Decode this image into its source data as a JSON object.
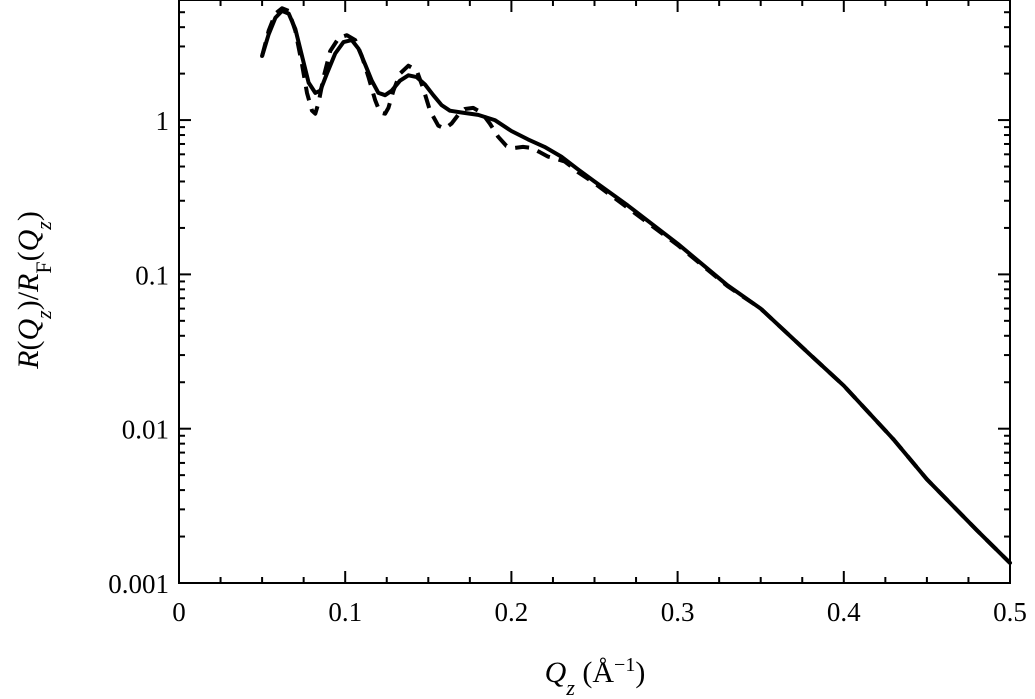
{
  "chart_data": {
    "type": "line",
    "title": "",
    "x_axis": {
      "label_parts": [
        {
          "text": "Q",
          "style": "italic"
        },
        {
          "text": "z",
          "style": "italic-sub"
        },
        {
          "text": " (Å",
          "style": "normal"
        },
        {
          "text": "−1",
          "style": "sup"
        },
        {
          "text": ")",
          "style": "normal"
        }
      ],
      "range": [
        0,
        0.5
      ],
      "ticks": [
        0,
        0.1,
        0.2,
        0.3,
        0.4,
        0.5
      ],
      "tick_labels": [
        "0",
        "0.1",
        "0.2",
        "0.3",
        "0.4",
        "0.5"
      ]
    },
    "y_axis": {
      "label_parts": [
        {
          "text": "R",
          "style": "italic"
        },
        {
          "text": "(",
          "style": "normal"
        },
        {
          "text": "Q",
          "style": "italic"
        },
        {
          "text": "z",
          "style": "italic-sub"
        },
        {
          "text": ")/",
          "style": "normal"
        },
        {
          "text": "R",
          "style": "italic"
        },
        {
          "text": "F",
          "style": "sub"
        },
        {
          "text": "(",
          "style": "normal"
        },
        {
          "text": "Q",
          "style": "italic"
        },
        {
          "text": "z",
          "style": "italic-sub"
        },
        {
          "text": ")",
          "style": "normal"
        }
      ],
      "scale": "log",
      "range": [
        0.001,
        6
      ],
      "ticks": [
        0.001,
        0.01,
        0.1,
        1
      ],
      "tick_labels": [
        "0.001",
        "0.01",
        "0.1",
        "1"
      ]
    },
    "grid": false,
    "legend": "none",
    "series": [
      {
        "style": "solid",
        "color": "#000000",
        "x": [
          0.05,
          0.054,
          0.058,
          0.062,
          0.066,
          0.07,
          0.074,
          0.078,
          0.082,
          0.085,
          0.089,
          0.094,
          0.099,
          0.104,
          0.108,
          0.112,
          0.116,
          0.12,
          0.124,
          0.128,
          0.133,
          0.138,
          0.143,
          0.148,
          0.153,
          0.158,
          0.163,
          0.17,
          0.18,
          0.19,
          0.2,
          0.21,
          0.22,
          0.23,
          0.24,
          0.25,
          0.27,
          0.3,
          0.33,
          0.35,
          0.38,
          0.4,
          0.43,
          0.45,
          0.48,
          0.5
        ],
        "y": [
          2.6,
          3.6,
          4.6,
          5.1,
          4.9,
          3.9,
          2.6,
          1.75,
          1.5,
          1.55,
          2.0,
          2.7,
          3.2,
          3.3,
          2.9,
          2.3,
          1.8,
          1.5,
          1.45,
          1.55,
          1.8,
          1.95,
          1.9,
          1.7,
          1.45,
          1.25,
          1.15,
          1.12,
          1.08,
          1.0,
          0.85,
          0.75,
          0.67,
          0.58,
          0.48,
          0.4,
          0.28,
          0.158,
          0.085,
          0.06,
          0.03,
          0.019,
          0.0085,
          0.0047,
          0.0022,
          0.00135
        ]
      },
      {
        "style": "dashed",
        "color": "#000000",
        "x": [
          0.05,
          0.054,
          0.058,
          0.062,
          0.066,
          0.07,
          0.074,
          0.077,
          0.08,
          0.082,
          0.084,
          0.087,
          0.091,
          0.096,
          0.101,
          0.106,
          0.11,
          0.114,
          0.118,
          0.121,
          0.124,
          0.126,
          0.129,
          0.133,
          0.138,
          0.143,
          0.147,
          0.151,
          0.156,
          0.16,
          0.164,
          0.168,
          0.172,
          0.177,
          0.182,
          0.187,
          0.192,
          0.197,
          0.202,
          0.207,
          0.212,
          0.217,
          0.222,
          0.227,
          0.232,
          0.236,
          0.24,
          0.25,
          0.27,
          0.3,
          0.33,
          0.35,
          0.38,
          0.4,
          0.43,
          0.45,
          0.48,
          0.5
        ],
        "y": [
          2.6,
          3.8,
          4.9,
          5.3,
          5.1,
          3.8,
          2.3,
          1.5,
          1.15,
          1.1,
          1.3,
          1.9,
          2.8,
          3.4,
          3.55,
          3.3,
          2.6,
          1.9,
          1.35,
          1.12,
          1.1,
          1.2,
          1.55,
          2.0,
          2.25,
          2.1,
          1.6,
          1.15,
          0.92,
          0.88,
          0.95,
          1.08,
          1.18,
          1.2,
          1.12,
          0.95,
          0.78,
          0.68,
          0.66,
          0.67,
          0.66,
          0.62,
          0.58,
          0.56,
          0.54,
          0.5,
          0.46,
          0.39,
          0.27,
          0.155,
          0.084,
          0.06,
          0.03,
          0.019,
          0.0085,
          0.0047,
          0.0022,
          0.00135
        ]
      }
    ]
  }
}
